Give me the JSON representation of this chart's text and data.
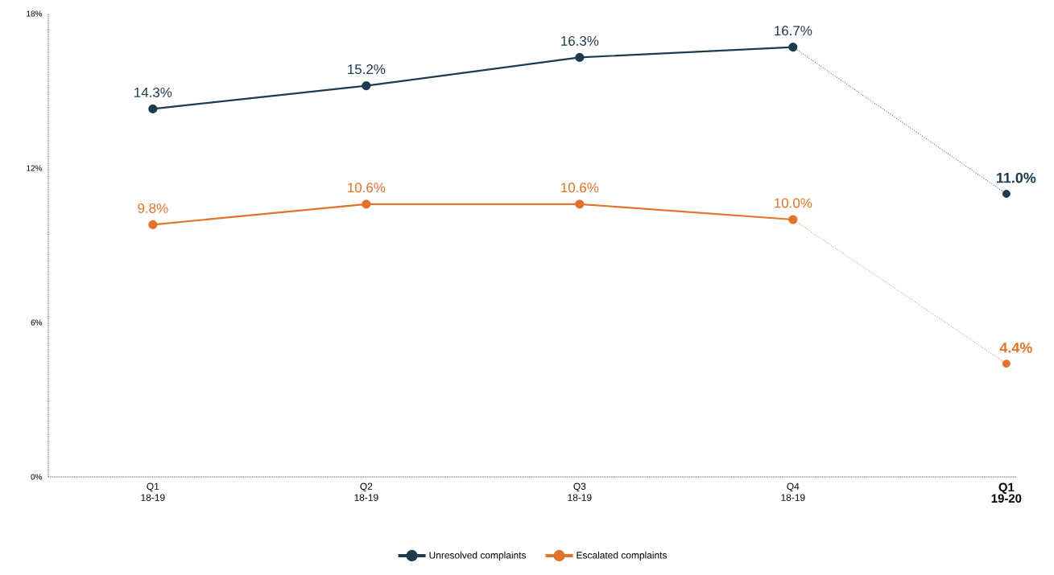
{
  "chart_data": {
    "type": "line",
    "categories": [
      "Q1 18-19",
      "Q2 18-19",
      "Q3 18-19",
      "Q4 18-19",
      "Q1 19-20"
    ],
    "series": [
      {
        "name": "Unresolved complaints",
        "color": "#1d3a4f",
        "line_style": "solid",
        "values": [
          14.3,
          15.2,
          16.3,
          16.7,
          null
        ],
        "value_labels": [
          "14.3%",
          "15.2%",
          "16.3%",
          "16.7%",
          null
        ]
      },
      {
        "name": "Escalated complaints",
        "color": "#e3722a",
        "line_style": "solid",
        "values": [
          9.8,
          10.6,
          10.6,
          10.0,
          null
        ],
        "value_labels": [
          "9.8%",
          "10.6%",
          "10.6%",
          "10.0%",
          null
        ]
      },
      {
        "color": "#1d3a4f",
        "line_style": "dotted",
        "values": [
          null,
          null,
          null,
          16.7,
          11.0
        ],
        "value_labels": [
          null,
          null,
          null,
          null,
          "11.0%"
        ]
      },
      {
        "color": "#e3722a",
        "line_style": "dotted",
        "values": [
          null,
          null,
          null,
          10.0,
          4.4
        ],
        "value_labels": [
          null,
          null,
          null,
          null,
          "4.4%"
        ]
      }
    ],
    "ylim": [
      0,
      18
    ],
    "yticks": [
      {
        "value": 0,
        "label": "0%"
      },
      {
        "value": 6,
        "label": "6%"
      },
      {
        "value": 12,
        "label": "12%"
      },
      {
        "value": 18,
        "label": "18%"
      }
    ],
    "marker": "circle",
    "legend": "bottom"
  }
}
